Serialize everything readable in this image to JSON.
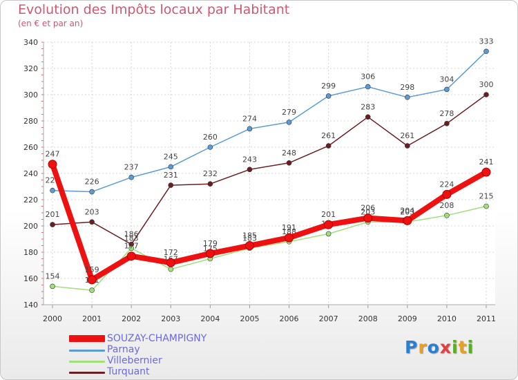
{
  "header": {
    "title": "Evolution des Impôts locaux par Habitant",
    "subtitle": "(en € et par an)"
  },
  "logo": {
    "letters": [
      "P",
      "r",
      "o",
      "x",
      "i",
      "t",
      "i"
    ],
    "colors": [
      "#2a7fd0",
      "#e8a020",
      "#2a7fd0",
      "#e04040",
      "#58b020",
      "#e8a020",
      "#58b020"
    ]
  },
  "chart_data": {
    "type": "line",
    "title": "Evolution des Impôts locaux par Habitant",
    "subtitle": "(en € et par an)",
    "xlabel": "",
    "ylabel": "",
    "categories": [
      "2000",
      "2001",
      "2002",
      "2003",
      "2004",
      "2005",
      "2006",
      "2007",
      "2008",
      "2009",
      "2010",
      "2011"
    ],
    "ylim": [
      140,
      340
    ],
    "yticks": [
      140,
      160,
      180,
      200,
      220,
      240,
      260,
      280,
      300,
      320,
      340
    ],
    "grid": true,
    "legend_position": "bottom-left",
    "series": [
      {
        "name": "Turquant",
        "color": "#6b1e22",
        "width": "thin",
        "values": [
          201,
          203,
          186,
          231,
          232,
          243,
          248,
          261,
          283,
          261,
          278,
          300
        ]
      },
      {
        "name": "Villebernier",
        "color": "#9fe07a",
        "width": "thin",
        "values": [
          154,
          151,
          183,
          167,
          175,
          183,
          188,
          194,
          203,
          203,
          208,
          215
        ]
      },
      {
        "name": "Parnay",
        "color": "#5b9bd5",
        "width": "thin",
        "values": [
          227,
          226,
          237,
          245,
          260,
          274,
          279,
          299,
          306,
          298,
          304,
          333
        ]
      },
      {
        "name": "SOUZAY-CHAMPIGNY",
        "color": "#ee1111",
        "width": "thick",
        "values": [
          247,
          159,
          177,
          172,
          179,
          185,
          191,
          201,
          206,
          204,
          224,
          241
        ]
      }
    ],
    "legend_order": [
      "SOUZAY-CHAMPIGNY",
      "Parnay",
      "Villebernier",
      "Turquant"
    ]
  }
}
